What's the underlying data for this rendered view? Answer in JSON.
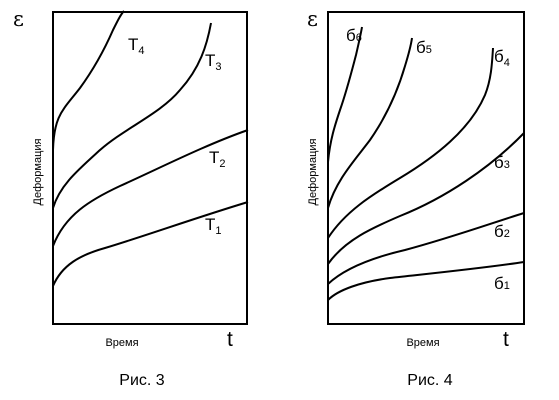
{
  "figure3": {
    "y_axis_symbol": "ε",
    "x_axis_symbol": "t",
    "y_axis_label": "Деформация",
    "x_axis_label": "Время",
    "caption": "Рис. 3",
    "curves": [
      {
        "label": "T",
        "sub": "4"
      },
      {
        "label": "T",
        "sub": "3"
      },
      {
        "label": "T",
        "sub": "2"
      },
      {
        "label": "T",
        "sub": "1"
      }
    ]
  },
  "figure4": {
    "y_axis_symbol": "ε",
    "x_axis_symbol": "t",
    "y_axis_label": "Деформация",
    "x_axis_label": "Время",
    "caption": "Рис. 4",
    "curves": [
      {
        "label": "б",
        "sub": "6"
      },
      {
        "label": "б",
        "sub": "5"
      },
      {
        "label": "б",
        "sub": "4"
      },
      {
        "label": "б",
        "sub": "3"
      },
      {
        "label": "б",
        "sub": "2"
      },
      {
        "label": "б",
        "sub": "1"
      }
    ]
  }
}
